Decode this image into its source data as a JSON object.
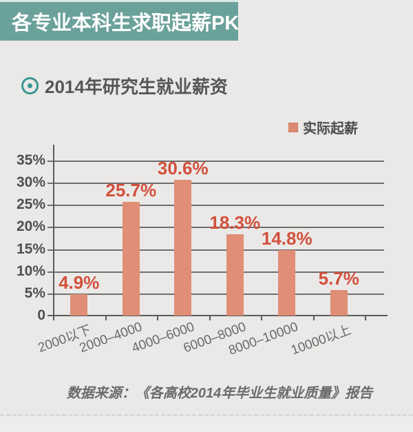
{
  "banner": {
    "title": "各专业本科生求职起薪PK"
  },
  "section": {
    "title": "2014年研究生就业薪资"
  },
  "legend": {
    "label": "实际起薪"
  },
  "footer": {
    "source_note": "数据来源：《各高校2014年毕业生就业质量》报告"
  },
  "colors": {
    "banner_bg": "#6ba19b",
    "banner_text": "#ffffff",
    "accent_teal": "#399792",
    "bar_fill": "#e08e76",
    "value_label": "#d2503c",
    "axis_text": "#4f4f4f",
    "background": "#ebe9e7"
  },
  "chart_data": {
    "type": "bar",
    "title": "2014年研究生就业薪资",
    "categories": [
      "2000以下",
      "2000–4000",
      "4000–6000",
      "6000–8000",
      "8000–10000",
      "10000以上"
    ],
    "series": [
      {
        "name": "实际起薪",
        "values": [
          4.9,
          25.7,
          30.6,
          18.3,
          14.8,
          5.7
        ],
        "value_labels": [
          "4.9%",
          "25.7%",
          "30.6%",
          "18.3%",
          "14.8%",
          "5.7%"
        ]
      }
    ],
    "xlabel": "",
    "ylabel": "",
    "ylim": [
      0,
      35
    ],
    "ytick_step": 5,
    "yticks": [
      "0",
      "5%",
      "10%",
      "15%",
      "20%",
      "25%",
      "30%",
      "35%"
    ],
    "grid": true,
    "legend_position": "top-right",
    "x_label_rotation_deg": -20
  }
}
